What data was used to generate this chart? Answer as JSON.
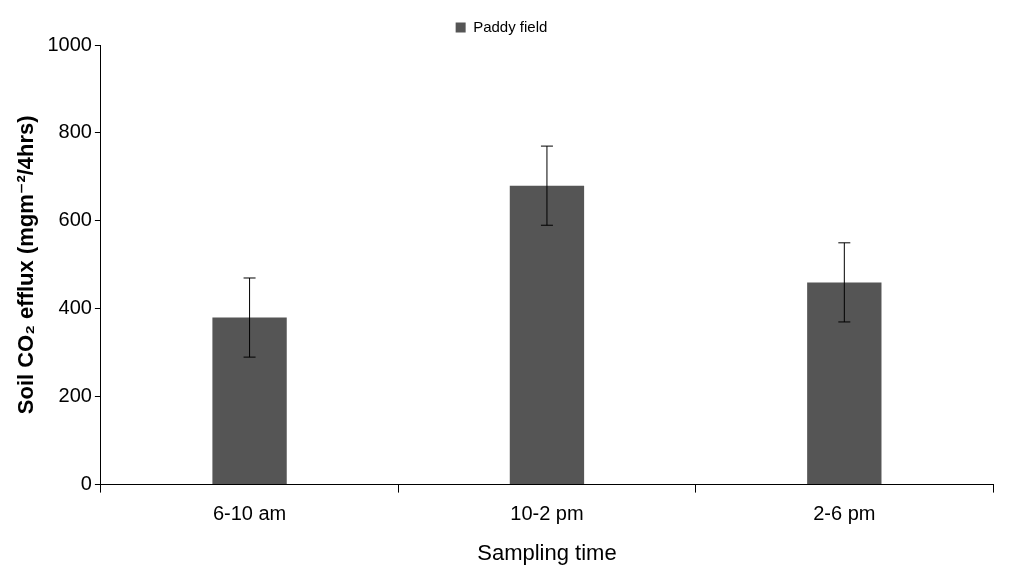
{
  "chart_data": {
    "type": "bar",
    "xlabel": "Sampling time",
    "ylabel": "Soil CO₂ efflux (mgm⁻²/4hrs)",
    "categories": [
      "6-10 am",
      "10-2 pm",
      "2-6 pm"
    ],
    "series": [
      {
        "name": "Paddy field",
        "color": "#555555",
        "values": [
          380,
          680,
          460
        ],
        "errors": [
          90,
          90,
          90
        ]
      }
    ],
    "ylim": [
      0,
      1000
    ],
    "yticks": [
      0,
      200,
      400,
      600,
      800,
      1000
    ],
    "grid": false,
    "legend": "top"
  }
}
